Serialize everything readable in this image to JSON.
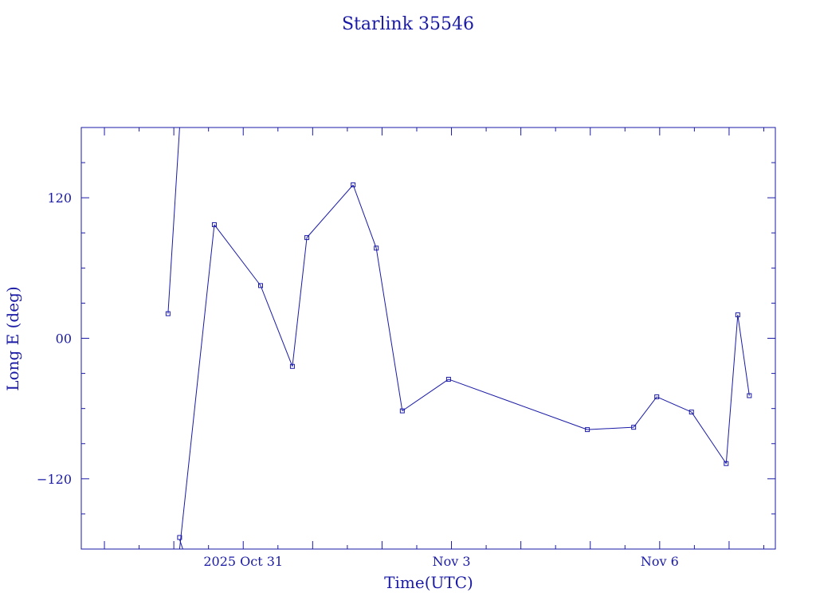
{
  "chart_data": {
    "type": "line",
    "title": "Starlink 35546",
    "xlabel": "Time(UTC)",
    "ylabel": "Long E (deg)",
    "x_unit": "date (2025, UTC)",
    "x_ticks": [
      {
        "label": "2025 Oct 31",
        "x": "2025-10-31T00:00"
      },
      {
        "label": "Nov  3",
        "x": "2025-11-03T00:00"
      },
      {
        "label": "Nov  6",
        "x": "2025-11-06T00:00"
      }
    ],
    "y_ticks": [
      {
        "label": "120",
        "y": 120
      },
      {
        "label": "00",
        "y": 0
      },
      {
        "label": "−120",
        "y": -120
      }
    ],
    "xlim": [
      "2025-10-28T16:00",
      "2025-11-07T16:00"
    ],
    "ylim": [
      -180,
      180
    ],
    "grid": false,
    "line_color": "#1a1aa6",
    "series": [
      {
        "points": [
          {
            "x": "2025-10-29T22:00",
            "y": 21
          },
          {
            "x": "2025-10-30T02:00",
            "y": 180
          },
          {
            "x": "2025-10-30T02:00",
            "y": -180
          },
          {
            "x": "2025-10-30T14:00",
            "y": 97
          },
          {
            "x": "2025-10-31T06:00",
            "y": 45
          },
          {
            "x": "2025-10-31T17:00",
            "y": -24
          },
          {
            "x": "2025-10-31T22:00",
            "y": 86
          },
          {
            "x": "2025-11-01T14:00",
            "y": 131
          },
          {
            "x": "2025-11-01T22:00",
            "y": 77
          },
          {
            "x": "2025-11-02T07:00",
            "y": -62
          },
          {
            "x": "2025-11-02T23:00",
            "y": -35
          },
          {
            "x": "2025-11-04T23:00",
            "y": -78
          },
          {
            "x": "2025-11-05T15:00",
            "y": -76
          },
          {
            "x": "2025-11-05T23:00",
            "y": -50
          },
          {
            "x": "2025-11-06T11:00",
            "y": -63
          },
          {
            "x": "2025-11-06T23:00",
            "y": -107
          },
          {
            "x": "2025-11-07T03:00",
            "y": 20
          },
          {
            "x": "2025-11-07T07:00",
            "y": -49
          }
        ],
        "breaks_after_index": [
          1
        ]
      }
    ]
  }
}
